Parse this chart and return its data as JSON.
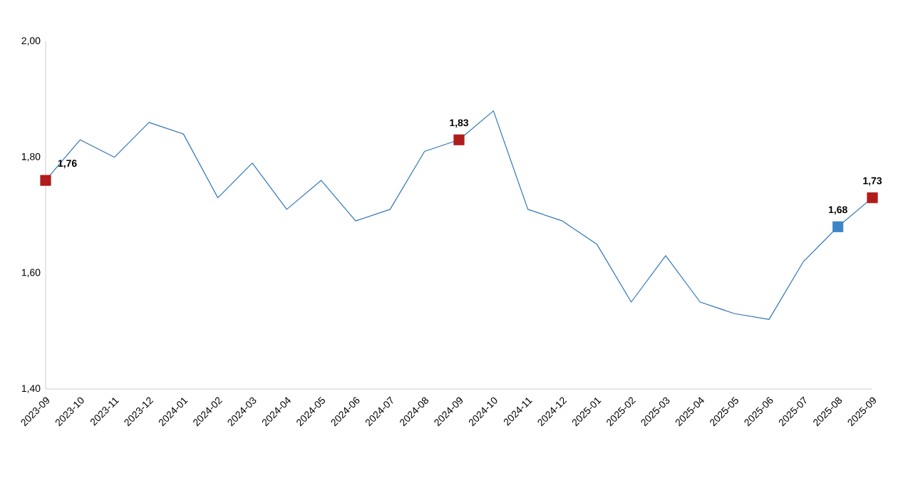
{
  "chart_data": {
    "type": "line",
    "categories": [
      "2023-09",
      "2023-10",
      "2023-11",
      "2023-12",
      "2024-01",
      "2024-02",
      "2024-03",
      "2024-04",
      "2024-05",
      "2024-06",
      "2024-07",
      "2024-08",
      "2024-09",
      "2024-10",
      "2024-11",
      "2024-12",
      "2025-01",
      "2025-02",
      "2025-03",
      "2025-04",
      "2025-05",
      "2025-06",
      "2025-07",
      "2025-08",
      "2025-09"
    ],
    "series": [
      {
        "color": "#2e75b6",
        "values": [
          1.76,
          1.83,
          1.8,
          1.86,
          1.84,
          1.73,
          1.79,
          1.71,
          1.76,
          1.69,
          1.71,
          1.81,
          1.83,
          1.88,
          1.71,
          1.69,
          1.65,
          1.55,
          1.63,
          1.55,
          1.53,
          1.52,
          1.62,
          1.68,
          1.73
        ]
      },
      {
        "type": "scatter",
        "marker": "square",
        "values": [
          1.76,
          null,
          null,
          null,
          null,
          null,
          null,
          null,
          null,
          null,
          null,
          null,
          1.83,
          null,
          null,
          null,
          null,
          null,
          null,
          null,
          null,
          null,
          null,
          1.68,
          1.73
        ],
        "colors": [
          "#b01c1c",
          null,
          null,
          null,
          null,
          null,
          null,
          null,
          null,
          null,
          null,
          null,
          "#b01c1c",
          null,
          null,
          null,
          null,
          null,
          null,
          null,
          null,
          null,
          null,
          "#3d85c6",
          "#b01c1c"
        ],
        "value_labels": [
          "1,76",
          null,
          null,
          null,
          null,
          null,
          null,
          null,
          null,
          null,
          null,
          null,
          "1,83",
          null,
          null,
          null,
          null,
          null,
          null,
          null,
          null,
          null,
          null,
          "1,68",
          "1,73"
        ]
      }
    ],
    "ylim": [
      1.4,
      2.0
    ],
    "yticks": [
      {
        "value": 1.4,
        "label": "1,40"
      },
      {
        "value": 1.6,
        "label": "1,60"
      },
      {
        "value": 1.8,
        "label": "1,80"
      },
      {
        "value": 2.0,
        "label": "2,00"
      }
    ],
    "grid": false
  }
}
